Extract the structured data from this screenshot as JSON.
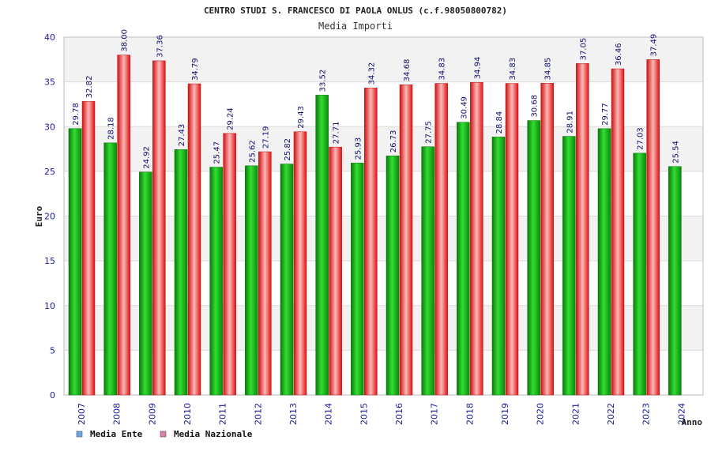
{
  "chart_data": {
    "type": "bar",
    "title": "CENTRO STUDI S. FRANCESCO DI PAOLA ONLUS (c.f.98050800782)",
    "subtitle": "Media Importi",
    "xlabel": "Anno",
    "ylabel": "Euro",
    "ylim": [
      0,
      40
    ],
    "yticks": [
      0,
      5,
      10,
      15,
      20,
      25,
      30,
      35,
      40
    ],
    "grid": true,
    "legend_position": "bottom-left",
    "categories": [
      "2007",
      "2008",
      "2009",
      "2010",
      "2011",
      "2012",
      "2013",
      "2014",
      "2015",
      "2016",
      "2017",
      "2018",
      "2019",
      "2020",
      "2021",
      "2022",
      "2023",
      "2024"
    ],
    "series": [
      {
        "name": "Media Ente",
        "legend_color": "#6aa8e8",
        "bar_color": "#11aa11",
        "values": [
          29.78,
          28.18,
          24.92,
          27.43,
          25.47,
          25.62,
          25.82,
          33.52,
          25.93,
          26.73,
          27.75,
          30.49,
          28.84,
          30.68,
          28.91,
          29.77,
          27.03,
          25.54
        ],
        "labels": [
          "29.78",
          "28.18",
          "24.92",
          "27.43",
          "25.47",
          "25.62",
          "25.82",
          "33.52",
          "25.93",
          "26.73",
          "27.75",
          "30.49",
          "28.84",
          "30.68",
          "28.91",
          "29.77",
          "27.03",
          "25.54"
        ]
      },
      {
        "name": "Media Nazionale",
        "legend_color": "#d980b0",
        "bar_color": "#ee2222",
        "values": [
          32.82,
          38.0,
          37.36,
          34.79,
          29.24,
          27.19,
          29.43,
          27.71,
          34.32,
          34.68,
          34.83,
          34.94,
          34.83,
          34.85,
          37.05,
          36.46,
          37.49,
          null
        ],
        "labels": [
          "32.82",
          "38.00",
          "37.36",
          "34.79",
          "29.24",
          "27.19",
          "29.43",
          "27.71",
          "34.32",
          "34.68",
          "34.83",
          "34.94",
          "34.83",
          "34.85",
          "37.05",
          "36.46",
          "37.49",
          null
        ]
      }
    ]
  }
}
